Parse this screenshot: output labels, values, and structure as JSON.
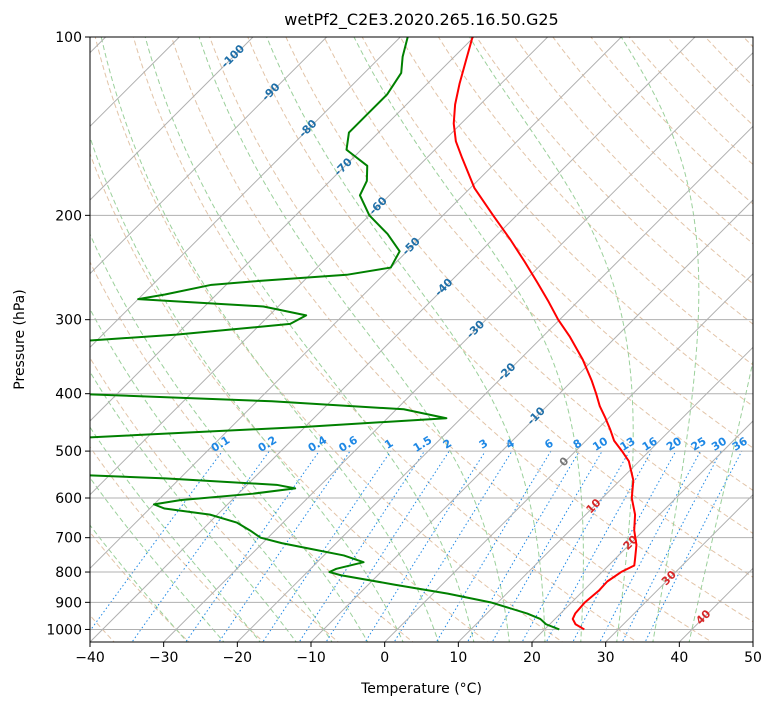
{
  "chart_data": {
    "type": "line",
    "chart_kind": "skew-T log-P",
    "title": "wetPf2_C2E3.2020.265.16.50.G25",
    "xlabel": "Temperature (°C)",
    "ylabel": "Pressure (hPa)",
    "xlim": [
      -40,
      50
    ],
    "ylim": [
      1050,
      100
    ],
    "y_scale": "log",
    "grid": true,
    "x_ticks": [
      "−40",
      "−30",
      "−20",
      "−10",
      "0",
      "10",
      "20",
      "30",
      "40",
      "50"
    ],
    "y_ticks": [
      "1000",
      "900",
      "800",
      "700",
      "600",
      "500",
      "400",
      "300",
      "200",
      "100"
    ],
    "colors": {
      "temperature": "#ff0000",
      "dewpoint": "#008000",
      "dry_adiabat": "#e2c4a8",
      "moist_adiabat": "#9bd09b",
      "mixing_ratio": "#1e88e5",
      "isotherm_label": "#1f6fa8",
      "isotherm_label_warm": "#d62728",
      "isobar": "#b0b0b0"
    },
    "isotherm_labels": [
      "-100",
      "-90",
      "-80",
      "-70",
      "-60",
      "-50",
      "-40",
      "-30",
      "-20",
      "-10",
      "0",
      "10",
      "20",
      "30",
      "40"
    ],
    "mixing_ratio_labels": [
      "0.1",
      "0.2",
      "0.4",
      "0.6",
      "1",
      "1.5",
      "2",
      "3",
      "4",
      "6",
      "8",
      "10",
      "13",
      "16",
      "20",
      "25",
      "30",
      "36"
    ],
    "series": [
      {
        "key": "temperature",
        "values": [
          [
            1000,
            25.4
          ],
          [
            980,
            23.5
          ],
          [
            960,
            22.4
          ],
          [
            940,
            22.0
          ],
          [
            900,
            21.8
          ],
          [
            860,
            22.1
          ],
          [
            830,
            22.0
          ],
          [
            800,
            22.6
          ],
          [
            780,
            23.5
          ],
          [
            760,
            22.7
          ],
          [
            720,
            21.0
          ],
          [
            680,
            18.7
          ],
          [
            640,
            16.7
          ],
          [
            600,
            14.0
          ],
          [
            560,
            11.8
          ],
          [
            520,
            8.6
          ],
          [
            500,
            6.3
          ],
          [
            480,
            3.8
          ],
          [
            460,
            1.8
          ],
          [
            440,
            -0.4
          ],
          [
            420,
            -2.8
          ],
          [
            400,
            -5.0
          ],
          [
            380,
            -7.4
          ],
          [
            350,
            -11.5
          ],
          [
            320,
            -16.4
          ],
          [
            300,
            -20.2
          ],
          [
            280,
            -23.9
          ],
          [
            260,
            -28.0
          ],
          [
            240,
            -32.5
          ],
          [
            220,
            -37.5
          ],
          [
            200,
            -43.2
          ],
          [
            180,
            -49.4
          ],
          [
            160,
            -55.2
          ],
          [
            150,
            -58.3
          ],
          [
            140,
            -61.0
          ],
          [
            130,
            -63.4
          ],
          [
            120,
            -65.6
          ],
          [
            110,
            -67.8
          ],
          [
            100,
            -70.2
          ]
        ]
      },
      {
        "key": "dewpoint",
        "values": [
          [
            1000,
            22.0
          ],
          [
            980,
            19.5
          ],
          [
            960,
            18.0
          ],
          [
            940,
            15.5
          ],
          [
            900,
            9.0
          ],
          [
            870,
            2.0
          ],
          [
            840,
            -6.5
          ],
          [
            810,
            -15.0
          ],
          [
            800,
            -17.0
          ],
          [
            790,
            -16.5
          ],
          [
            770,
            -13.7
          ],
          [
            750,
            -17.3
          ],
          [
            730,
            -23.0
          ],
          [
            715,
            -27.4
          ],
          [
            700,
            -31.0
          ],
          [
            680,
            -33.5
          ],
          [
            660,
            -36.3
          ],
          [
            640,
            -41.0
          ],
          [
            625,
            -48.0
          ],
          [
            615,
            -50.0
          ],
          [
            605,
            -47.0
          ],
          [
            590,
            -38.0
          ],
          [
            578,
            -33.0
          ],
          [
            570,
            -36.0
          ],
          [
            556,
            -52.0
          ],
          [
            545,
            -70.0
          ],
          [
            530,
            -95.0
          ],
          [
            520,
            -92.0
          ],
          [
            500,
            -68.0
          ],
          [
            490,
            -73.0
          ],
          [
            480,
            -76.0
          ],
          [
            470,
            -62.0
          ],
          [
            455,
            -40.0
          ],
          [
            440,
            -22.0
          ],
          [
            425,
            -29.0
          ],
          [
            412,
            -48.0
          ],
          [
            400,
            -76.0
          ],
          [
            390,
            -86.0
          ],
          [
            360,
            -97.0
          ],
          [
            340,
            -95.0
          ],
          [
            330,
            -88.0
          ],
          [
            318,
            -70.0
          ],
          [
            305,
            -56.0
          ],
          [
            295,
            -55.0
          ],
          [
            285,
            -62.0
          ],
          [
            277,
            -80.0
          ],
          [
            272,
            -77.0
          ],
          [
            262,
            -72.0
          ],
          [
            258,
            -66.0
          ],
          [
            252,
            -55.0
          ],
          [
            245,
            -50.0
          ],
          [
            230,
            -51.0
          ],
          [
            215,
            -55.0
          ],
          [
            200,
            -60.0
          ],
          [
            185,
            -64.0
          ],
          [
            175,
            -65.0
          ],
          [
            165,
            -67.0
          ],
          [
            155,
            -72.0
          ],
          [
            145,
            -74.0
          ],
          [
            140,
            -74.0
          ],
          [
            135,
            -74.0
          ],
          [
            125,
            -74.0
          ],
          [
            115,
            -75.0
          ],
          [
            108,
            -77.0
          ],
          [
            100,
            -79.0
          ]
        ]
      }
    ]
  }
}
